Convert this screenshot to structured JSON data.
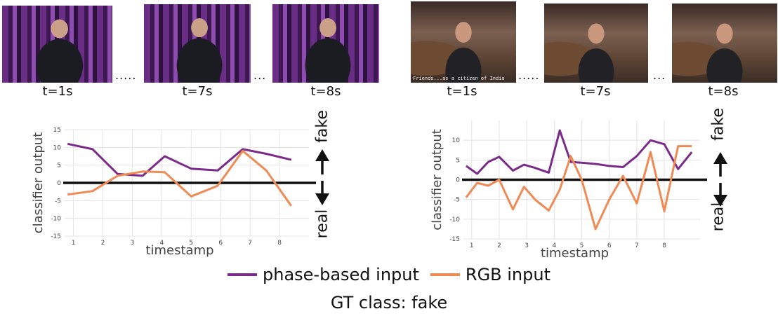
{
  "frame_labels": [
    "t=1s",
    "t=7s",
    "t=8s"
  ],
  "ellipsis": [
    ".....",
    "..."
  ],
  "frame_caption": "Friends...as a citizen of India",
  "side_labels": {
    "top": "fake",
    "bottom": "real"
  },
  "legend": {
    "phase": {
      "label": "phase-based input",
      "color": "#7b2a8a"
    },
    "rgb": {
      "label": "RGB input",
      "color": "#ef8a55"
    }
  },
  "gt_label": "GT class: fake",
  "chart_data": [
    {
      "type": "line",
      "xlabel": "timestamp",
      "ylabel": "classifier output",
      "xlim": [
        0.7,
        9.0
      ],
      "ylim": [
        -15,
        15
      ],
      "xticks": [
        1,
        2,
        3,
        4,
        5,
        6,
        7,
        8
      ],
      "yticks": [
        -15,
        -10,
        -5,
        0,
        5,
        10,
        15
      ],
      "grid": true,
      "series": [
        {
          "name": "phase-based input",
          "color": "#7b2a8a",
          "x": [
            0.8,
            1.65,
            2.5,
            3.35,
            4.1,
            5.0,
            5.9,
            6.75,
            7.55,
            8.4
          ],
          "y": [
            11,
            9.5,
            2.5,
            2,
            7.5,
            4,
            3.5,
            9.5,
            8.2,
            6.5
          ]
        },
        {
          "name": "RGB input",
          "color": "#ef8a55",
          "x": [
            0.8,
            1.65,
            2.5,
            3.35,
            4.1,
            5.0,
            5.9,
            6.75,
            7.55,
            8.4
          ],
          "y": [
            -3.3,
            -2.3,
            2,
            3.2,
            3,
            -3.8,
            -0.8,
            9,
            3.5,
            -6.5
          ]
        }
      ]
    },
    {
      "type": "line",
      "xlabel": "timestamp",
      "ylabel": "classifier output",
      "xlim": [
        0.7,
        9.3
      ],
      "ylim": [
        -15,
        15
      ],
      "xticks": [
        1,
        2,
        3,
        4,
        5,
        6,
        7,
        8
      ],
      "yticks": [
        -15,
        -10,
        -5,
        0,
        5,
        10
      ],
      "grid": true,
      "series": [
        {
          "name": "phase-based input",
          "color": "#7b2a8a",
          "x": [
            0.8,
            1.2,
            1.6,
            2.0,
            2.5,
            2.9,
            3.3,
            3.8,
            4.2,
            4.6,
            5.0,
            5.5,
            6.0,
            6.5,
            7.0,
            7.5,
            8.0,
            8.5,
            9.0
          ],
          "y": [
            3.5,
            1.5,
            4.5,
            5.8,
            2.3,
            3.8,
            3.0,
            1.8,
            12.5,
            4.5,
            4.3,
            4.0,
            3.5,
            3.2,
            6.0,
            10.0,
            9.0,
            2.7,
            7.0
          ]
        },
        {
          "name": "RGB input",
          "color": "#ef8a55",
          "x": [
            0.8,
            1.2,
            1.6,
            2.0,
            2.5,
            2.9,
            3.3,
            3.8,
            4.2,
            4.6,
            5.0,
            5.5,
            6.0,
            6.5,
            7.0,
            7.5,
            8.0,
            8.5,
            9.0
          ],
          "y": [
            -4.5,
            -0.8,
            -1.5,
            0,
            -7.5,
            -1.8,
            -5.0,
            -7.8,
            -2.5,
            6.0,
            0,
            -12.5,
            -5.0,
            1.0,
            -6.0,
            7.0,
            -8.0,
            8.5,
            8.5
          ]
        }
      ]
    }
  ]
}
